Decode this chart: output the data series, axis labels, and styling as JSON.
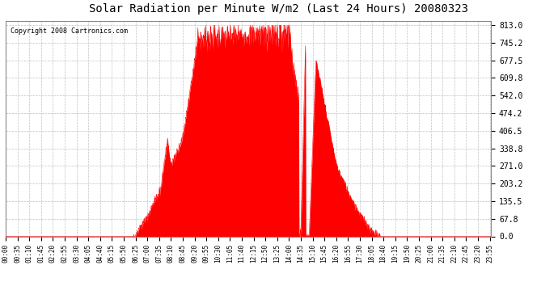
{
  "title": "Solar Radiation per Minute W/m2 (Last 24 Hours) 20080323",
  "copyright_text": "Copyright 2008 Cartronics.com",
  "fill_color": "#FF0000",
  "background_color": "#FFFFFF",
  "grid_color": "#BBBBBB",
  "dashed_line_color": "#FF0000",
  "yticks": [
    0.0,
    67.8,
    135.5,
    203.2,
    271.0,
    338.8,
    406.5,
    474.2,
    542.0,
    609.8,
    677.5,
    745.2,
    813.0
  ],
  "ymax": 813.0,
  "ymin": 0.0,
  "total_minutes": 1440,
  "tick_interval": 35
}
